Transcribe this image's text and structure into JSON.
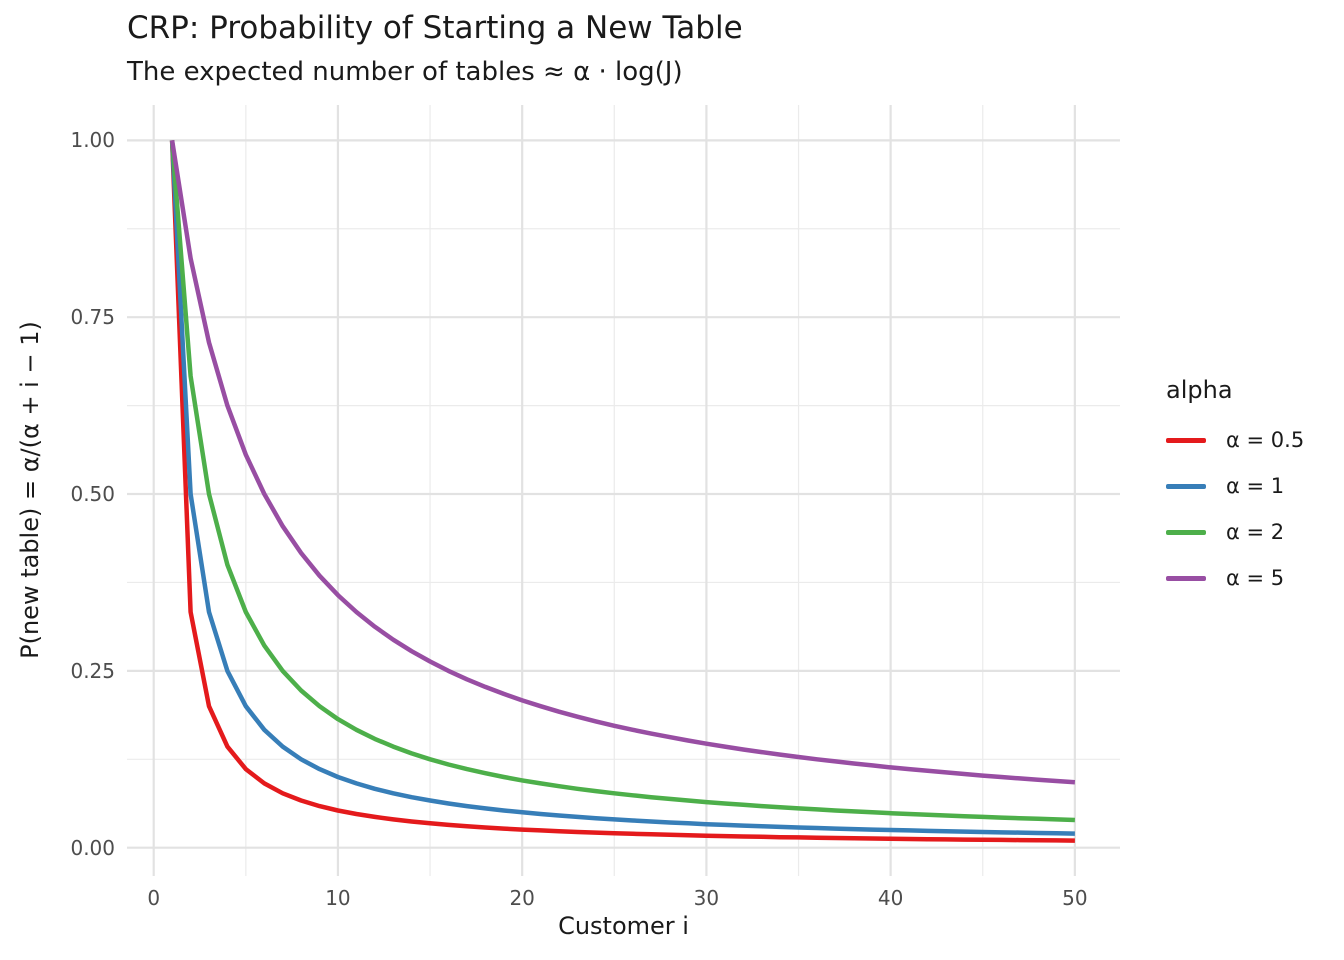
{
  "header": {
    "title": "CRP: Probability of Starting a New Table",
    "subtitle": "The expected number of tables ≈ α · log(J)"
  },
  "chart_data": {
    "type": "line",
    "title": "CRP: Probability of Starting a New Table",
    "subtitle": "The expected number of tables ≈ α · log(J)",
    "xlabel": "Customer i",
    "ylabel": "P(new table) = α/(α + i − 1)",
    "legend_title": "alpha",
    "legend_position": "right",
    "grid": true,
    "background": "#ffffff",
    "grid_major_color": "#e2e2e2",
    "grid_minor_color": "#ebebeb",
    "x": [
      1,
      2,
      3,
      4,
      5,
      6,
      7,
      8,
      9,
      10,
      11,
      12,
      13,
      14,
      15,
      16,
      17,
      18,
      19,
      20,
      21,
      22,
      23,
      24,
      25,
      26,
      27,
      28,
      29,
      30,
      31,
      32,
      33,
      34,
      35,
      36,
      37,
      38,
      39,
      40,
      41,
      42,
      43,
      44,
      45,
      46,
      47,
      48,
      49,
      50
    ],
    "series": [
      {
        "name": "α = 0.5",
        "alpha": 0.5,
        "color": "#E41A1C",
        "values": [
          1,
          0.3333,
          0.2,
          0.1429,
          0.1111,
          0.0909,
          0.0769,
          0.0667,
          0.0588,
          0.0526,
          0.0476,
          0.0435,
          0.04,
          0.037,
          0.0345,
          0.0323,
          0.0303,
          0.0286,
          0.027,
          0.0256,
          0.0244,
          0.0233,
          0.0222,
          0.0213,
          0.0204,
          0.0196,
          0.0189,
          0.0182,
          0.0175,
          0.0169,
          0.0164,
          0.0159,
          0.0154,
          0.0149,
          0.0145,
          0.0141,
          0.0137,
          0.0133,
          0.013,
          0.0127,
          0.0123,
          0.012,
          0.0118,
          0.0115,
          0.0112,
          0.011,
          0.0108,
          0.0105,
          0.0103,
          0.0101
        ]
      },
      {
        "name": "α = 1",
        "alpha": 1,
        "color": "#377EB8",
        "values": [
          1,
          0.5,
          0.3333,
          0.25,
          0.2,
          0.1667,
          0.1429,
          0.125,
          0.1111,
          0.1,
          0.0909,
          0.0833,
          0.0769,
          0.0714,
          0.0667,
          0.0625,
          0.0588,
          0.0556,
          0.0526,
          0.05,
          0.0476,
          0.0455,
          0.0435,
          0.0417,
          0.04,
          0.0385,
          0.037,
          0.0357,
          0.0345,
          0.0333,
          0.0323,
          0.0313,
          0.0303,
          0.0294,
          0.0286,
          0.0278,
          0.027,
          0.0263,
          0.0256,
          0.025,
          0.0244,
          0.0238,
          0.0233,
          0.0227,
          0.0222,
          0.0217,
          0.0213,
          0.0208,
          0.0204,
          0.02
        ]
      },
      {
        "name": "α = 2",
        "alpha": 2,
        "color": "#4DAF4A",
        "values": [
          1,
          0.6667,
          0.5,
          0.4,
          0.3333,
          0.2857,
          0.25,
          0.2222,
          0.2,
          0.1818,
          0.1667,
          0.1538,
          0.1429,
          0.1333,
          0.125,
          0.1176,
          0.1111,
          0.1053,
          0.1,
          0.0952,
          0.0909,
          0.087,
          0.0833,
          0.08,
          0.0769,
          0.0741,
          0.0714,
          0.069,
          0.0667,
          0.0645,
          0.0625,
          0.0606,
          0.0588,
          0.0571,
          0.0556,
          0.0541,
          0.0526,
          0.0513,
          0.05,
          0.0488,
          0.0476,
          0.0465,
          0.0455,
          0.0444,
          0.0435,
          0.0426,
          0.0417,
          0.0408,
          0.04,
          0.0392
        ]
      },
      {
        "name": "α = 5",
        "alpha": 5,
        "color": "#984EA3",
        "values": [
          1,
          0.8333,
          0.7143,
          0.625,
          0.5556,
          0.5,
          0.4545,
          0.4167,
          0.3846,
          0.3571,
          0.3333,
          0.3125,
          0.2941,
          0.2778,
          0.2632,
          0.25,
          0.2381,
          0.2273,
          0.2174,
          0.2083,
          0.2,
          0.1923,
          0.1852,
          0.1786,
          0.1724,
          0.1667,
          0.1613,
          0.1563,
          0.1515,
          0.1471,
          0.1429,
          0.1389,
          0.1351,
          0.1316,
          0.1282,
          0.125,
          0.122,
          0.119,
          0.1163,
          0.1136,
          0.1111,
          0.1087,
          0.1064,
          0.1042,
          0.102,
          0.1,
          0.098,
          0.0962,
          0.0943,
          0.0926
        ]
      }
    ],
    "x_axis": {
      "range": [
        -1.45,
        52.45
      ],
      "major_ticks": [
        0,
        10,
        20,
        30,
        40,
        50
      ],
      "minor_ticks": [
        5,
        15,
        25,
        35,
        45
      ],
      "tick_labels": [
        "0",
        "10",
        "20",
        "30",
        "40",
        "50"
      ]
    },
    "y_axis": {
      "range": [
        -0.04,
        1.05
      ],
      "major_ticks": [
        0,
        0.25,
        0.5,
        0.75,
        1.0
      ],
      "minor_ticks": [
        0.125,
        0.375,
        0.625,
        0.875
      ],
      "tick_labels": [
        "0.00",
        "0.25",
        "0.50",
        "0.75",
        "1.00"
      ]
    }
  }
}
